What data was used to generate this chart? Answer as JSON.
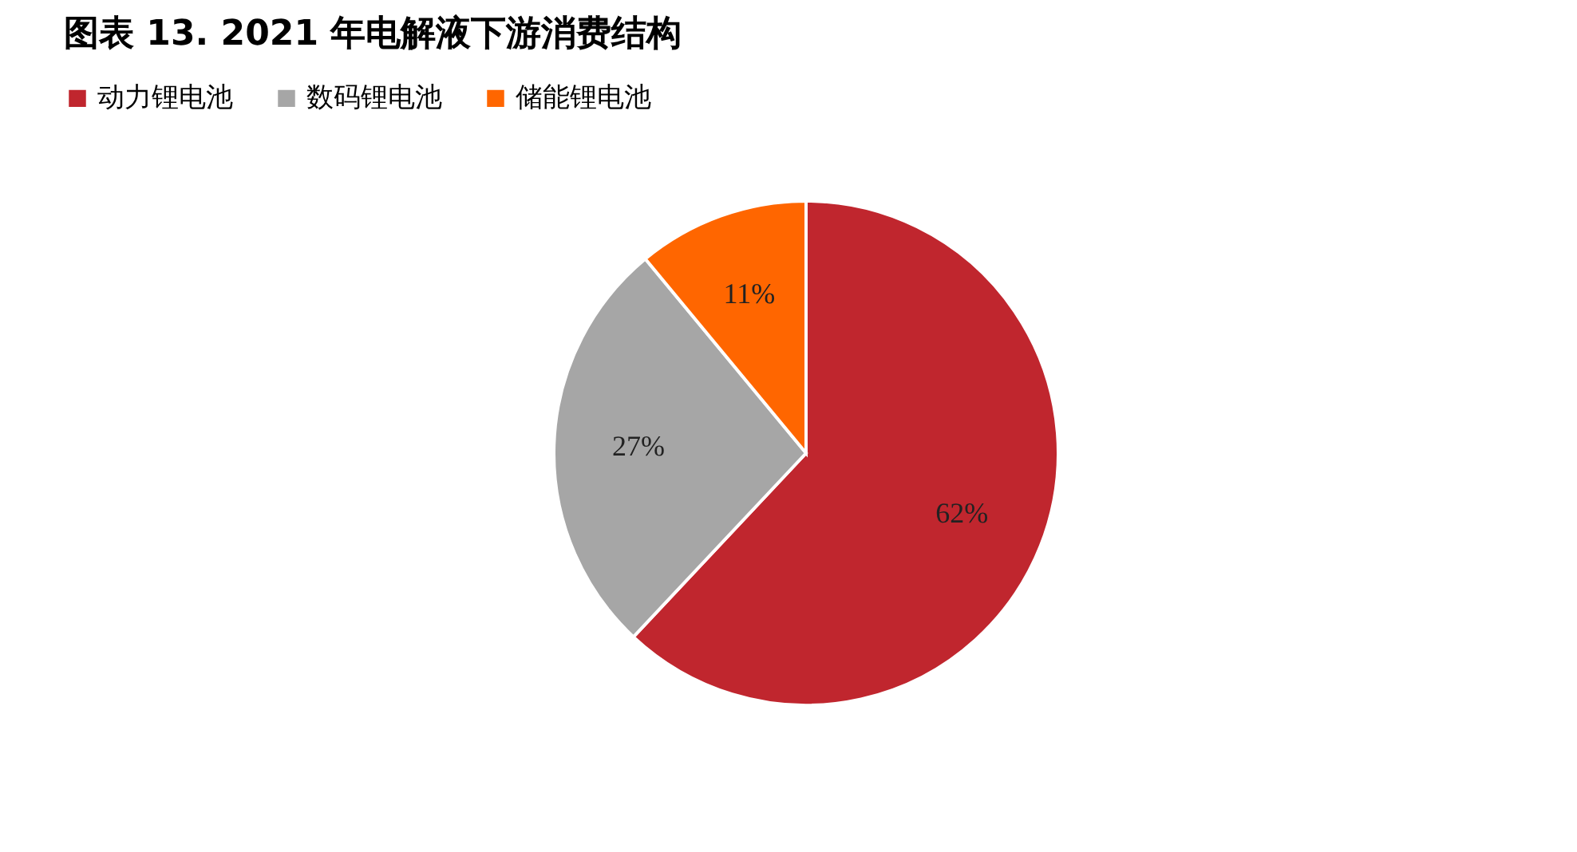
{
  "chart_data": {
    "type": "pie",
    "title": "图表 13. 2021 年电解液下游消费结构",
    "categories": [
      "动力锂电池",
      "数码锂电池",
      "储能锂电池"
    ],
    "values": [
      62,
      27,
      11
    ],
    "colors": [
      "#c0262e",
      "#a6a6a6",
      "#ff6600"
    ],
    "value_labels": [
      "62%",
      "27%",
      "11%"
    ],
    "legend": "top"
  }
}
